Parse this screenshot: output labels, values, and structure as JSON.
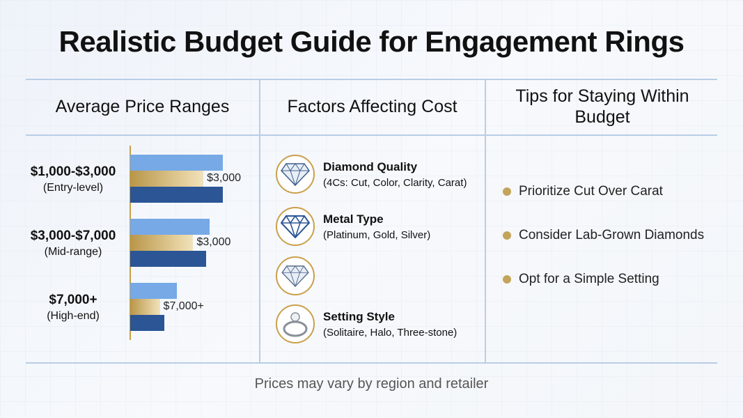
{
  "title": "Realistic Budget Guide for Engagement Rings",
  "columns": [
    "Average Price Ranges",
    "Factors Affecting Cost",
    "Tips for Staying Within Budget"
  ],
  "price_ranges": [
    {
      "range": "$1,000-$3,000",
      "label": "(Entry-level)",
      "bar_label": "$3,000"
    },
    {
      "range": "$3,000-$7,000",
      "label": "(Mid-range)",
      "bar_label": "$3,000"
    },
    {
      "range": "$7,000+",
      "label": "(High-end)",
      "bar_label": "$7,000+"
    }
  ],
  "factors": [
    {
      "icon": "diamond-icon",
      "title": "Diamond Quality",
      "subtitle": "(4Cs: Cut, Color, Clarity, Carat)"
    },
    {
      "icon": "diamond-outline-icon",
      "title": "Metal Type",
      "subtitle": "(Platinum, Gold, Silver)"
    },
    {
      "icon": "diamond-icon",
      "title": "",
      "subtitle": ""
    },
    {
      "icon": "ring-icon",
      "title": "Setting Style",
      "subtitle": "(Solitaire, Halo, Three-stone)"
    }
  ],
  "tips": [
    "Prioritize Cut Over Carat",
    "Consider Lab-Grown Diamonds",
    "Opt for a Simple Setting"
  ],
  "footer": "Prices may vary by region and retailer",
  "colors": {
    "light_blue": "#76a9e6",
    "gold": "#c9a04a",
    "dark_blue": "#2b5595",
    "divider": "#b9cde6"
  },
  "chart_data": {
    "type": "bar",
    "orientation": "horizontal",
    "grid": false,
    "categories": [
      "$1,000-$3,000 (Entry-level)",
      "$3,000-$7,000 (Mid-range)",
      "$7,000+ (High-end)"
    ],
    "value_scale": "relative (no axis printed)",
    "series": [
      {
        "color": "#76a9e6",
        "values": [
          100,
          86,
          50
        ]
      },
      {
        "color": "#c9a04a",
        "values": [
          79,
          68,
          32
        ]
      },
      {
        "color": "#2b5595",
        "values": [
          100,
          82,
          37
        ]
      }
    ],
    "data_labels": [
      "$3,000",
      "$3,000",
      "$7,000+"
    ]
  }
}
